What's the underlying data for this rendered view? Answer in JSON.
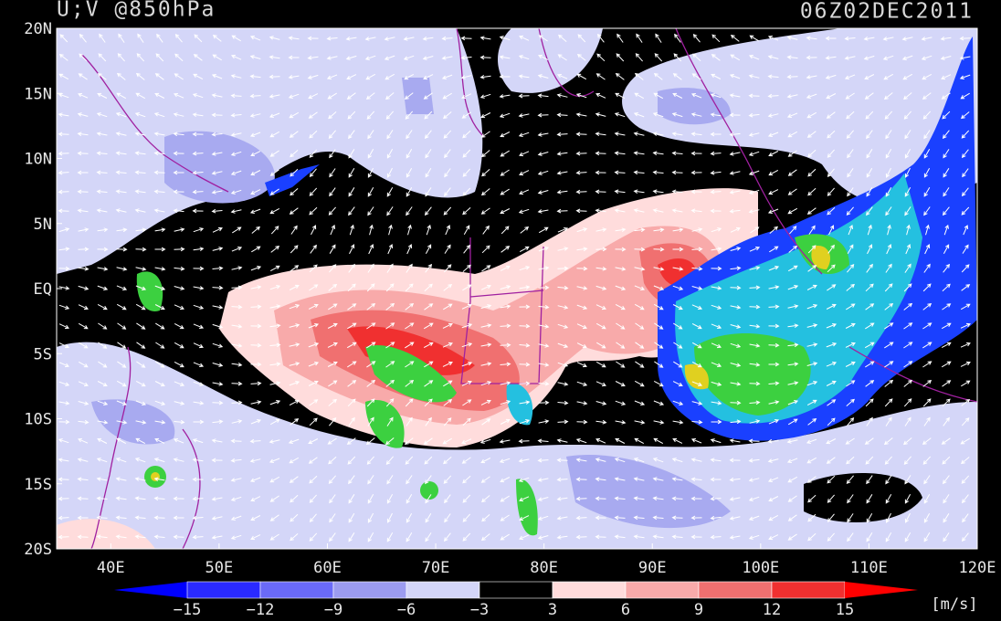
{
  "header": {
    "title": "U;V @850hPa",
    "time": "06Z02DEC2011"
  },
  "map": {
    "lat_labels": [
      "20N",
      "15N",
      "10N",
      "5N",
      "EQ",
      "5S",
      "10S",
      "15S",
      "20S"
    ],
    "lon_labels": [
      "40E",
      "50E",
      "60E",
      "70E",
      "80E",
      "90E",
      "100E",
      "110E",
      "120E"
    ]
  },
  "colorbar": {
    "labels": [
      "−15",
      "−12",
      "−9",
      "−6",
      "−3",
      "3",
      "6",
      "9",
      "12",
      "15"
    ],
    "unit": "[m/s]"
  }
}
